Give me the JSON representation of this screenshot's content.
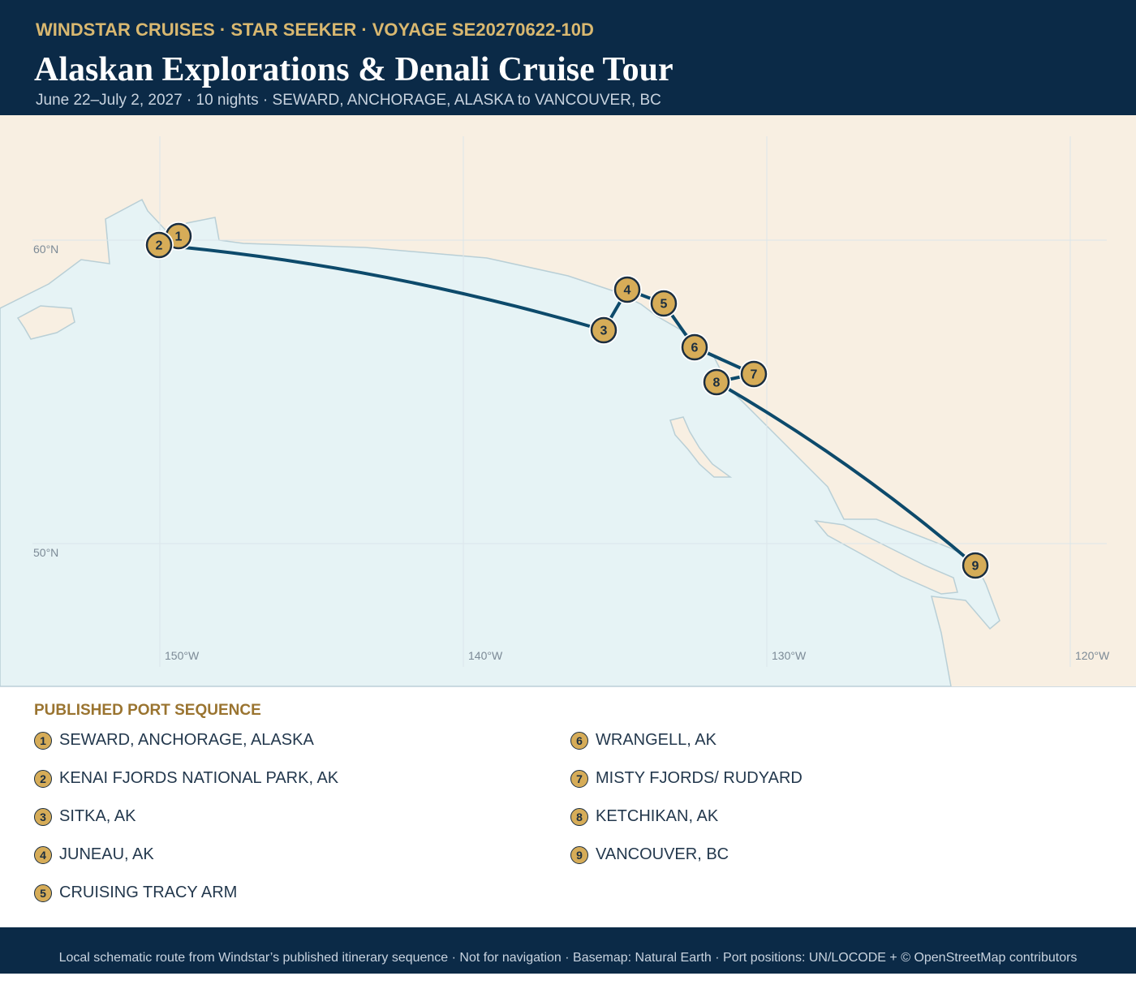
{
  "header": {
    "kicker": "WINDSTAR CRUISES · STAR SEEKER · VOYAGE SE20270622-10D",
    "title": "Alaskan Explorations & Denali Cruise Tour",
    "subtitle": "June 22–July 2, 2027 · 10 nights · SEWARD, ANCHORAGE, ALASKA to VANCOUVER, BC"
  },
  "map": {
    "lat_labels": [
      "60°N",
      "50°N"
    ],
    "lon_labels": [
      "150°W",
      "140°W",
      "130°W",
      "120°W"
    ]
  },
  "legend": {
    "heading": "PUBLISHED PORT SEQUENCE",
    "ports": [
      {
        "number": "1",
        "name": "SEWARD, ANCHORAGE, ALASKA"
      },
      {
        "number": "2",
        "name": "KENAI FJORDS NATIONAL PARK, AK"
      },
      {
        "number": "3",
        "name": "SITKA, AK"
      },
      {
        "number": "4",
        "name": "JUNEAU, AK"
      },
      {
        "number": "5",
        "name": "CRUISING TRACY ARM"
      },
      {
        "number": "6",
        "name": "WRANGELL, AK"
      },
      {
        "number": "7",
        "name": "MISTY FJORDS/ RUDYARD"
      },
      {
        "number": "8",
        "name": "KETCHIKAN, AK"
      },
      {
        "number": "9",
        "name": "VANCOUVER, BC"
      }
    ]
  },
  "footer": "Local schematic route from Windstar’s published itinerary sequence · Not for navigation · Basemap: Natural Earth · Port positions: UN/LOCODE + © OpenStreetMap contributors"
}
